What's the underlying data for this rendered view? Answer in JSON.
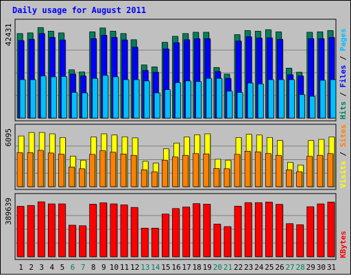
{
  "colors": {
    "background": "#C0C0C0",
    "hits": "#00805C",
    "files": "#0000FF",
    "pages": "#00C0FF",
    "visits": "#FFFF00",
    "sites": "#FF8000",
    "kbytes": "#FF0000",
    "title": "#0000FF",
    "weekday": "#000000",
    "weekend": "#00805C"
  },
  "chart_data": {
    "type": "bar",
    "title": "Daily usage for August 2011",
    "categories": [
      "1",
      "2",
      "3",
      "4",
      "5",
      "6",
      "7",
      "8",
      "9",
      "10",
      "11",
      "12",
      "13",
      "14",
      "15",
      "16",
      "17",
      "18",
      "19",
      "20",
      "21",
      "22",
      "23",
      "24",
      "25",
      "26",
      "27",
      "28",
      "29",
      "30",
      "31"
    ],
    "weekend_days": [
      "6",
      "7",
      "13",
      "14",
      "20",
      "21",
      "27",
      "28"
    ],
    "panels": [
      {
        "name": "hits",
        "ymax_label": "42431",
        "ylim": [
          0,
          42431
        ],
        "legend": [
          {
            "text": "Hits",
            "color": "#00805C"
          },
          {
            "text": " / ",
            "color": "#000000"
          },
          {
            "text": "Files",
            "color": "#0000FF"
          },
          {
            "text": " / ",
            "color": "#000000"
          },
          {
            "text": "Pages",
            "color": "#00C0FF"
          }
        ],
        "series": [
          {
            "name": "Hits",
            "color": "#00805C",
            "values": [
              39600,
              39900,
              42400,
              40700,
              39900,
              22600,
              21600,
              40400,
              42200,
              40700,
              39600,
              36700,
              24900,
              24000,
              35500,
              38300,
              39600,
              40200,
              40200,
              23700,
              20600,
              39100,
              41000,
              40700,
              41400,
              40400,
              23400,
              21500,
              40200,
              40400,
              41000
            ]
          },
          {
            "name": "Files",
            "color": "#0000FF",
            "values": [
              36300,
              36900,
              39600,
              37800,
              36600,
              20600,
              19700,
              37200,
              38800,
              37800,
              36600,
              33200,
              22300,
              21500,
              32400,
              35300,
              36700,
              37200,
              37200,
              21800,
              18600,
              36100,
              38100,
              37500,
              37600,
              36900,
              20300,
              19700,
              37200,
              37200,
              37800
            ]
          },
          {
            "name": "Pages",
            "color": "#00C0FF",
            "values": [
              18000,
              18000,
              19700,
              19300,
              19500,
              12000,
              11800,
              18600,
              20000,
              19300,
              18000,
              18000,
              17400,
              11800,
              13300,
              16600,
              17400,
              17100,
              18600,
              18600,
              12600,
              12000,
              16400,
              16000,
              18000,
              18000,
              18000,
              11000,
              10200,
              17700,
              18000
            ]
          }
        ]
      },
      {
        "name": "visits",
        "ymax_label": "6095",
        "ylim": [
          0,
          6095
        ],
        "legend": [
          {
            "text": "Visits",
            "color": "#FFFF00"
          },
          {
            "text": " / ",
            "color": "#000000"
          },
          {
            "text": "Sites",
            "color": "#FF8000"
          }
        ],
        "series": [
          {
            "name": "Visits",
            "color": "#FFFF00",
            "values": [
              5700,
              6095,
              6095,
              5940,
              5530,
              3440,
              2990,
              5590,
              5940,
              5810,
              5610,
              5490,
              2860,
              2660,
              4260,
              4910,
              5590,
              5840,
              5940,
              3090,
              2990,
              5530,
              5890,
              5810,
              5530,
              5200,
              2740,
              2440,
              5200,
              5320,
              5600
            ]
          },
          {
            "name": "Sites",
            "color": "#FF8000",
            "values": [
              3840,
              3840,
              4090,
              3790,
              3660,
              2220,
              2020,
              3640,
              4040,
              3880,
              3680,
              3530,
              1900,
              1680,
              2990,
              3340,
              3530,
              3720,
              3690,
              2050,
              2020,
              3640,
              3990,
              3920,
              3730,
              3530,
              1900,
              1690,
              3420,
              3530,
              3720
            ]
          }
        ]
      },
      {
        "name": "kbytes",
        "ymax_label": "389639",
        "ylim": [
          0,
          389639
        ],
        "legend": [
          {
            "text": "KBytes",
            "color": "#FF0000"
          }
        ],
        "series": [
          {
            "name": "KBytes",
            "color": "#FF0000",
            "values": [
              358000,
              364000,
              389600,
              375000,
              375000,
              224000,
              220000,
              373000,
              383000,
              375000,
              368000,
              350000,
              203000,
              203000,
              303000,
              342000,
              353000,
              377000,
              373000,
              232000,
              214000,
              359000,
              384000,
              384000,
              388000,
              372000,
              235000,
              227000,
              355000,
              375000,
              388000
            ]
          }
        ]
      }
    ]
  }
}
